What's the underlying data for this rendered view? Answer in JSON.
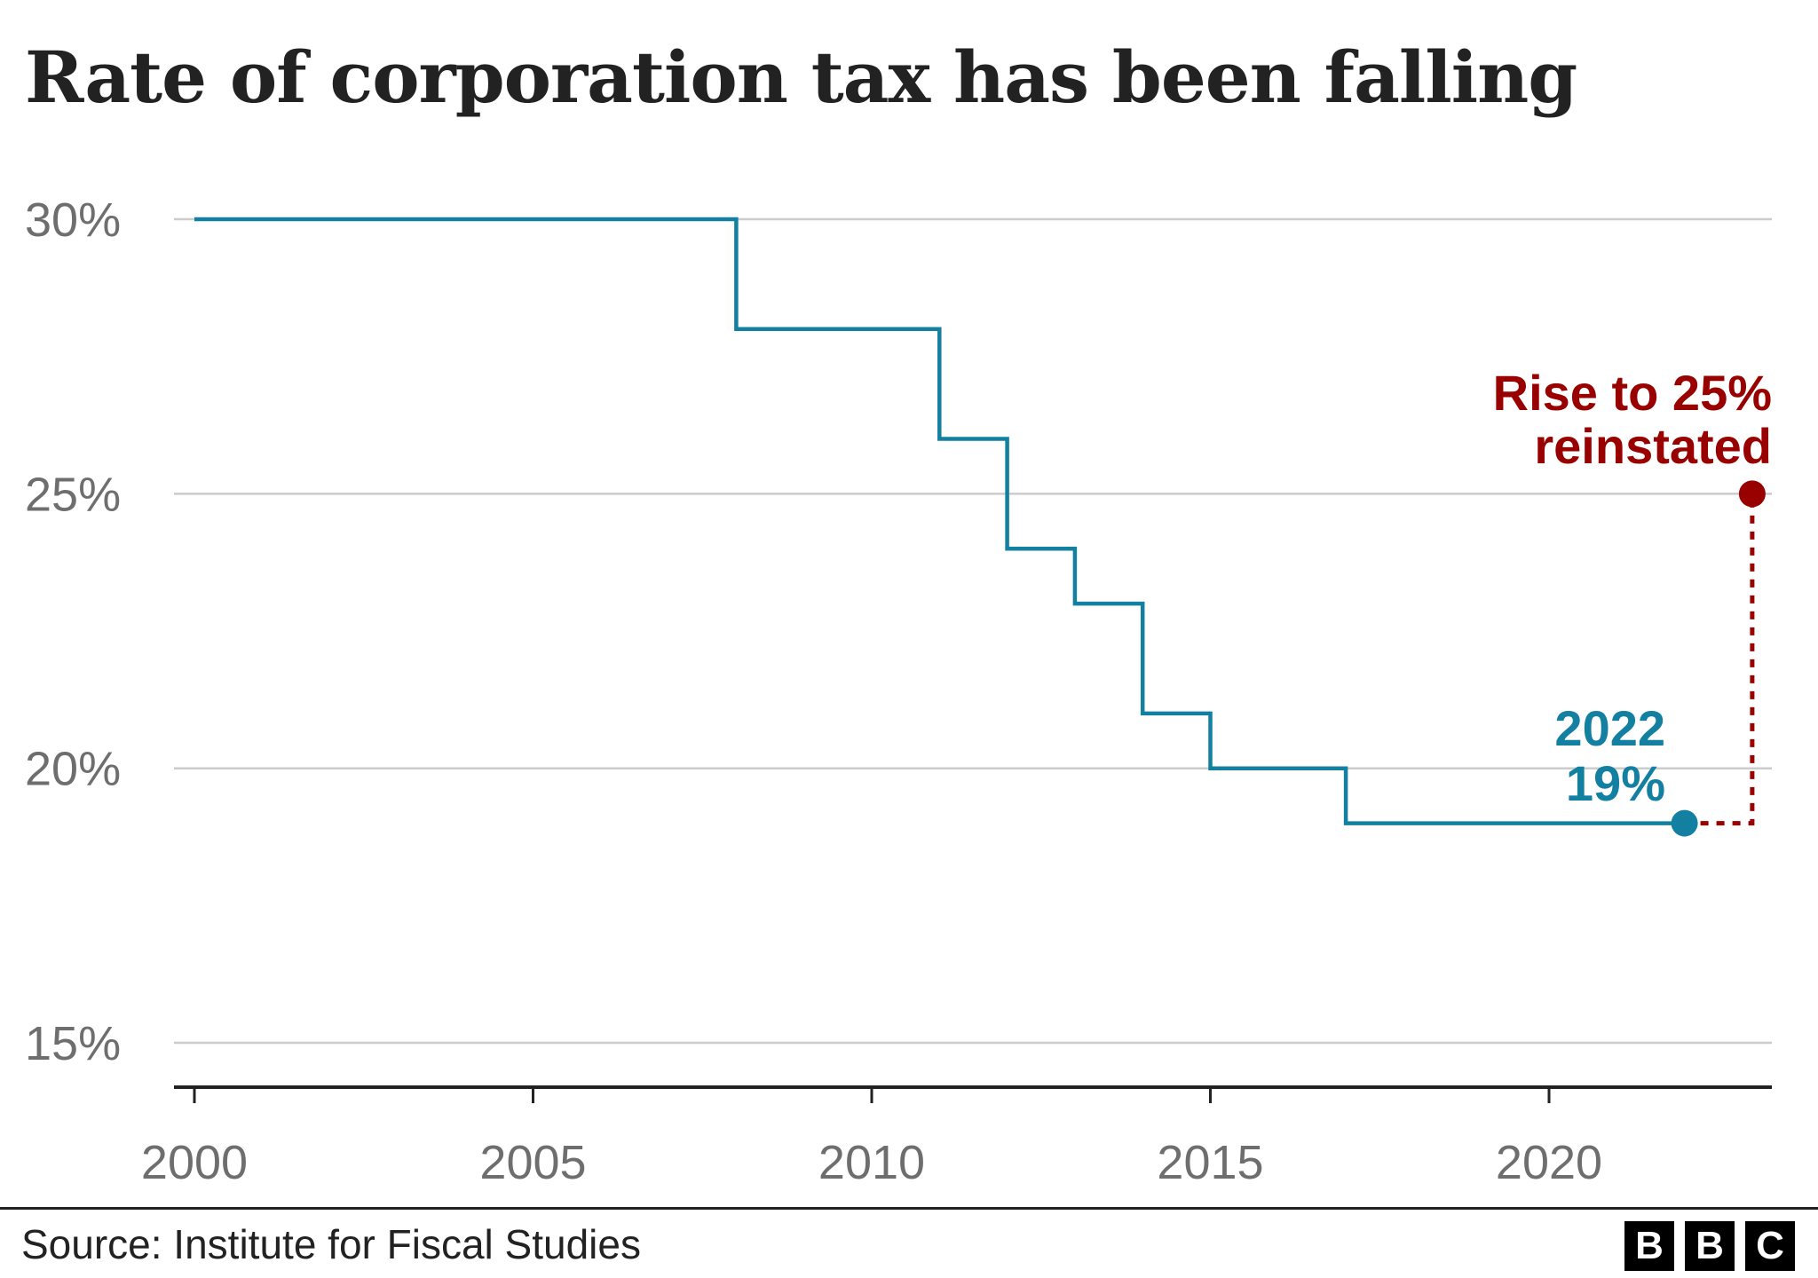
{
  "chart_data": {
    "type": "line",
    "title": "Rate of corporation tax has been falling",
    "step": true,
    "x": [
      2000,
      2008,
      2011,
      2012,
      2013,
      2014,
      2015,
      2017,
      2022
    ],
    "y": [
      30,
      28,
      26,
      24,
      23,
      21,
      20,
      19,
      19
    ],
    "xlim": [
      2000,
      2023.3
    ],
    "ylim": [
      15,
      30
    ],
    "xticks": [
      2000,
      2005,
      2010,
      2015,
      2020
    ],
    "xtick_labels": [
      "2000",
      "2005",
      "2010",
      "2015",
      "2020"
    ],
    "yticks": [
      15,
      20,
      25,
      30
    ],
    "ytick_labels": [
      "15%",
      "20%",
      "25%",
      "30%"
    ],
    "grid": true,
    "series_color": "#1380A1",
    "projection": {
      "from": [
        2022,
        19
      ],
      "corner": [
        2023,
        19
      ],
      "to": [
        2023,
        25
      ],
      "color": "#990000",
      "style": "dotted"
    },
    "annotations": [
      {
        "lines": [
          "2022",
          "19%"
        ],
        "at": [
          2022,
          19
        ],
        "color": "#1380A1"
      },
      {
        "lines": [
          "Rise to 25%",
          "reinstated"
        ],
        "at": [
          2023,
          25
        ],
        "color": "#990000"
      }
    ]
  },
  "footer": {
    "source": "Source: Institute for Fiscal Studies",
    "logo": [
      "B",
      "B",
      "C"
    ]
  }
}
